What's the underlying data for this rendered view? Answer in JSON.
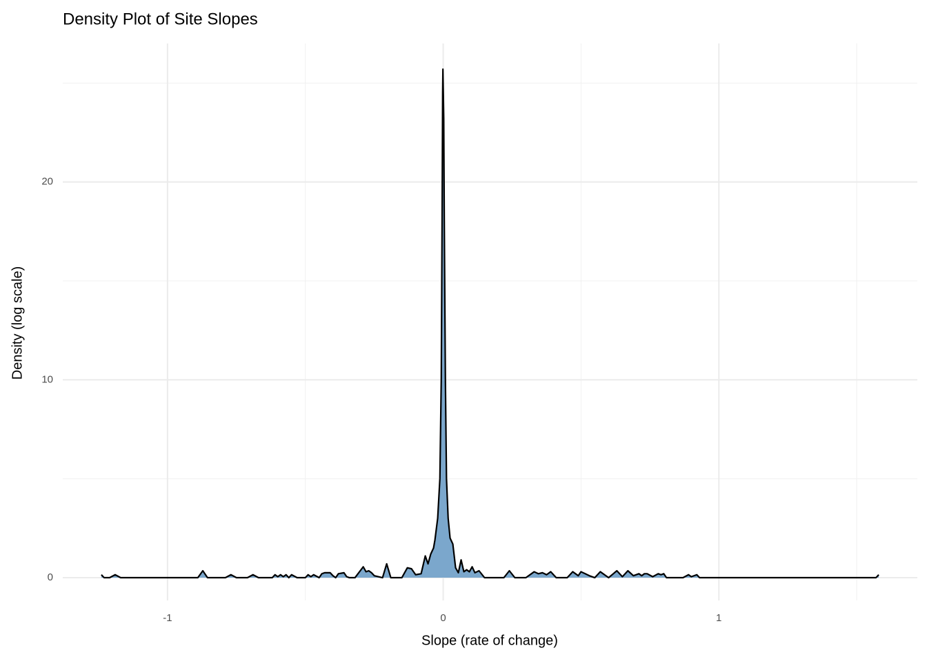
{
  "chart_data": {
    "type": "density",
    "title": "Density Plot of Site Slopes",
    "x_label": "Slope (rate of change)",
    "y_label": "Density (log scale)",
    "x": [
      -1.24,
      -1.23,
      -1.21,
      -1.19,
      -1.17,
      -0.89,
      -0.872,
      -0.855,
      -0.79,
      -0.77,
      -0.75,
      -0.71,
      -0.69,
      -0.67,
      -0.62,
      -0.61,
      -0.6,
      -0.59,
      -0.58,
      -0.57,
      -0.56,
      -0.55,
      -0.53,
      -0.5,
      -0.49,
      -0.48,
      -0.47,
      -0.45,
      -0.44,
      -0.43,
      -0.41,
      -0.4,
      -0.39,
      -0.38,
      -0.36,
      -0.35,
      -0.34,
      -0.32,
      -0.29,
      -0.28,
      -0.27,
      -0.26,
      -0.25,
      -0.22,
      -0.205,
      -0.19,
      -0.15,
      -0.13,
      -0.115,
      -0.1,
      -0.08,
      -0.065,
      -0.055,
      -0.045,
      -0.035,
      -0.03,
      -0.02,
      -0.012,
      -0.007,
      -0.004,
      -0.002,
      -0.001,
      0.002,
      0.004,
      0.008,
      0.012,
      0.018,
      0.025,
      0.03,
      0.035,
      0.045,
      0.055,
      0.065,
      0.075,
      0.085,
      0.095,
      0.105,
      0.115,
      0.13,
      0.15,
      0.22,
      0.24,
      0.26,
      0.3,
      0.32,
      0.33,
      0.345,
      0.36,
      0.375,
      0.39,
      0.41,
      0.45,
      0.47,
      0.49,
      0.5,
      0.515,
      0.53,
      0.55,
      0.57,
      0.6,
      0.63,
      0.65,
      0.67,
      0.69,
      0.71,
      0.72,
      0.73,
      0.74,
      0.76,
      0.78,
      0.79,
      0.8,
      0.81,
      0.87,
      0.89,
      0.9,
      0.92,
      0.93,
      1.57,
      1.58
    ],
    "y": [
      0.15,
      0.0,
      0.0,
      0.15,
      0.0,
      0.0,
      0.35,
      0.0,
      0.0,
      0.15,
      0.0,
      0.0,
      0.15,
      0.0,
      0.0,
      0.15,
      0.05,
      0.15,
      0.05,
      0.15,
      0.0,
      0.15,
      0.0,
      0.0,
      0.15,
      0.05,
      0.15,
      0.0,
      0.2,
      0.25,
      0.25,
      0.1,
      0.0,
      0.2,
      0.25,
      0.05,
      0.0,
      0.0,
      0.55,
      0.3,
      0.35,
      0.25,
      0.1,
      0.0,
      0.7,
      0.0,
      0.0,
      0.5,
      0.45,
      0.15,
      0.2,
      1.1,
      0.7,
      1.2,
      1.5,
      1.9,
      3.0,
      5.0,
      10.0,
      18.0,
      24.5,
      25.7,
      23.2,
      18.0,
      10.0,
      5.0,
      3.0,
      2.0,
      1.85,
      1.7,
      0.5,
      0.25,
      0.9,
      0.3,
      0.4,
      0.3,
      0.55,
      0.25,
      0.35,
      0.0,
      0.0,
      0.35,
      0.0,
      0.0,
      0.2,
      0.3,
      0.2,
      0.25,
      0.15,
      0.3,
      0.0,
      0.0,
      0.3,
      0.1,
      0.3,
      0.2,
      0.1,
      0.0,
      0.3,
      0.0,
      0.35,
      0.05,
      0.35,
      0.1,
      0.2,
      0.1,
      0.2,
      0.2,
      0.05,
      0.2,
      0.15,
      0.2,
      0.0,
      0.0,
      0.15,
      0.05,
      0.15,
      0.0,
      0.0,
      0.15
    ],
    "fill": "#7ba7cc",
    "color": "#000000",
    "xlim": [
      -1.38,
      1.72
    ],
    "xticks": [
      -1,
      0,
      1
    ],
    "ylim": [
      -1.15,
      27
    ],
    "yticks": [
      0,
      10,
      20
    ],
    "x_minor_grid": [
      -0.5,
      0.5,
      1.5
    ],
    "y_minor_grid": [
      5,
      15,
      25
    ],
    "grid": true
  }
}
